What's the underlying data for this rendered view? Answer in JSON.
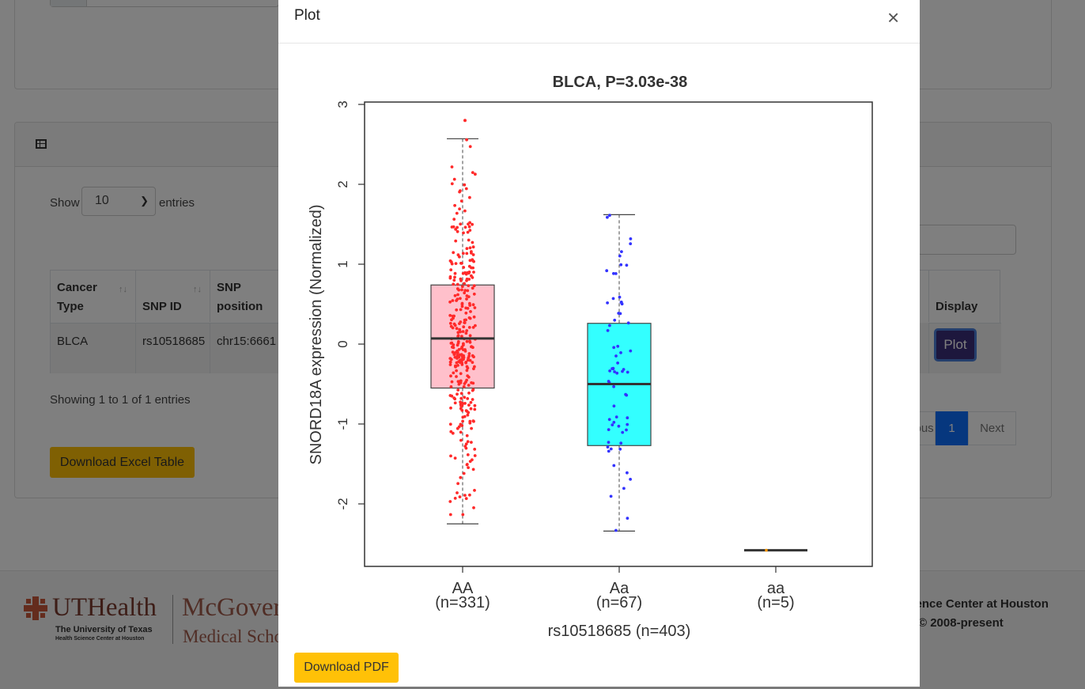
{
  "background": {
    "table_panel": {
      "show_label": "Show",
      "entries_per_page": "10",
      "entries_label": "entries",
      "columns": [
        "Cancer Type",
        "SNP ID",
        "SNP position",
        "Display"
      ],
      "row": {
        "cancer_type": "BLCA",
        "snp_id": "rs10518685",
        "snp_position": "chr15:6661",
        "display_button": "Plot"
      },
      "info": "Showing 1 to 1 of 1 entries",
      "pagination": {
        "previous": "Previous",
        "current": "1",
        "next": "Next"
      },
      "download_excel": "Download Excel Table"
    },
    "footer": {
      "ut_name": "UTHealth",
      "ut_sub1": "The University of Texas",
      "ut_sub2": "Health Science Center at Houston",
      "mcgovern_line1": "McGovern",
      "mcgovern_line2": "Medical School",
      "right_line1": "cience Center at Houston",
      "right_line2": "© 2008-present"
    }
  },
  "modal": {
    "title": "Plot",
    "close_icon": "×",
    "download_pdf": "Download PDF"
  },
  "chart_data": {
    "type": "box",
    "title": "BLCA, P=3.03e-38",
    "xlabel": "rs10518685 (n=403)",
    "ylabel": "SNORD18A expression (Normalized)",
    "ylim": [
      -2.6,
      3.1
    ],
    "yticks": [
      "-2",
      "-1",
      "0",
      "1",
      "2",
      "3"
    ],
    "grid": false,
    "groups": [
      {
        "name": "AA",
        "n_label": "(n=331)",
        "n": 331,
        "color": "#ffc0cb",
        "point_color": "#ff2a2a",
        "whisker_low": -2.25,
        "q1": -0.55,
        "median": 0.07,
        "q3": 0.74,
        "whisker_high": 2.57,
        "outliers": [
          2.8
        ],
        "jitter_low": -2.25,
        "jitter_high": 2.57
      },
      {
        "name": "Aa",
        "n_label": "(n=67)",
        "n": 67,
        "color": "#33ffff",
        "point_color": "#3333ff",
        "whisker_low": -2.34,
        "q1": -1.27,
        "median": -0.5,
        "q3": 0.26,
        "whisker_high": 1.62,
        "outliers": [],
        "jitter_low": -2.34,
        "jitter_high": 1.62
      },
      {
        "name": "aa",
        "n_label": "(n=5)",
        "n": 5,
        "color": "#ffa500",
        "point_color": "#ff9900",
        "whisker_low": -2.58,
        "q1": -2.58,
        "median": -2.58,
        "q3": -2.58,
        "whisker_high": -2.58,
        "outliers": [],
        "jitter_low": -2.58,
        "jitter_high": -2.58
      }
    ]
  }
}
